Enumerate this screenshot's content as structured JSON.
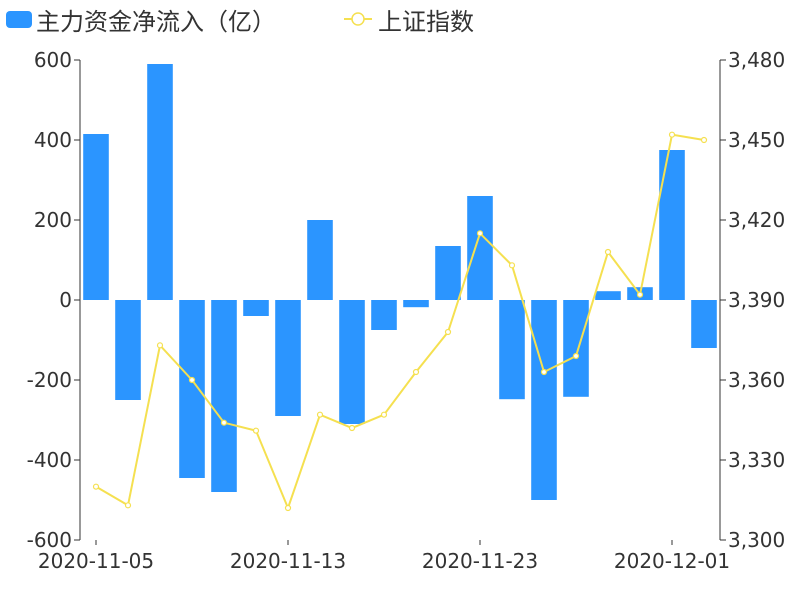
{
  "chart_data": {
    "type": "bar+line",
    "dates": [
      "2020-11-05",
      "2020-11-06",
      "2020-11-09",
      "2020-11-10",
      "2020-11-11",
      "2020-11-12",
      "2020-11-13",
      "2020-11-16",
      "2020-11-17",
      "2020-11-18",
      "2020-11-19",
      "2020-11-20",
      "2020-11-23",
      "2020-11-24",
      "2020-11-25",
      "2020-11-26",
      "2020-11-27",
      "2020-11-30",
      "2020-12-01",
      "2020-12-02"
    ],
    "x_tick_labels": [
      "2020-11-05",
      "2020-11-13",
      "2020-11-23",
      "2020-12-01"
    ],
    "x_tick_indices": [
      0,
      6,
      12,
      18
    ],
    "series": [
      {
        "name": "主力资金净流入（亿）",
        "type": "bar",
        "axis": "left",
        "color": "#2b95ff",
        "values": [
          415,
          -250,
          590,
          -445,
          -480,
          -40,
          -290,
          200,
          -310,
          -75,
          -18,
          135,
          260,
          -248,
          -500,
          -242,
          22,
          32,
          375,
          -120
        ]
      },
      {
        "name": "上证指数",
        "type": "line",
        "axis": "right",
        "color": "#f5e050",
        "values": [
          3320,
          3313,
          3373,
          3360,
          3344,
          3341,
          3312,
          3347,
          3342,
          3347,
          3363,
          3378,
          3415,
          3403,
          3363,
          3369,
          3408,
          3392,
          3452,
          3450
        ]
      }
    ],
    "y_left": {
      "min": -600,
      "max": 600,
      "ticks": [
        600,
        400,
        200,
        0,
        -200,
        -400,
        -600
      ],
      "tick_labels": [
        "600",
        "400",
        "200",
        "0",
        "-200",
        "-400",
        "-600"
      ]
    },
    "y_right": {
      "min": 3300,
      "max": 3480,
      "ticks": [
        3480,
        3450,
        3420,
        3390,
        3360,
        3330,
        3300
      ],
      "tick_labels": [
        "3,480",
        "3,450",
        "3,420",
        "3,390",
        "3,360",
        "3,330",
        "3,300"
      ]
    },
    "legend_position": "top-left",
    "grid": false
  }
}
